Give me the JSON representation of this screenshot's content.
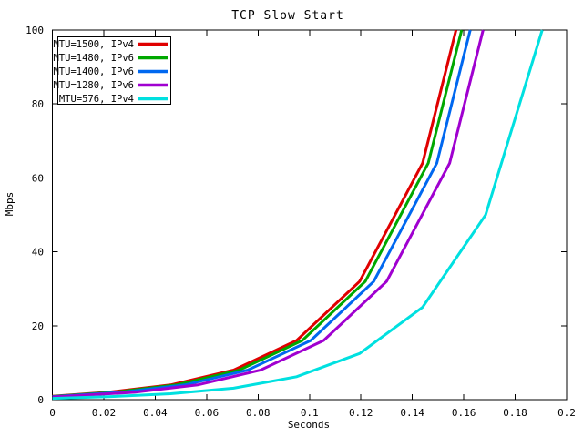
{
  "chart_data": {
    "type": "line",
    "title": "TCP Slow Start",
    "xlabel": "Seconds",
    "ylabel": "Mbps",
    "xlim": [
      0,
      0.2
    ],
    "ylim": [
      0,
      100
    ],
    "xticks": [
      0,
      0.02,
      0.04,
      0.06,
      0.08,
      0.1,
      0.12,
      0.14,
      0.16,
      0.18,
      0.2
    ],
    "xtick_labels": [
      "0",
      "0.02",
      "0.04",
      "0.06",
      "0.08",
      "0.1",
      "0.12",
      "0.14",
      "0.16",
      "0.18",
      "0.2"
    ],
    "yticks": [
      0,
      20,
      40,
      60,
      80,
      100
    ],
    "ytick_labels": [
      "0",
      "20",
      "40",
      "60",
      "80",
      "100"
    ],
    "grid": false,
    "legend_position": "top-left",
    "legend_border": true,
    "background_color": "#ffffff",
    "axis_color": "#000000",
    "series": [
      {
        "name": "MTU=1500, IPv4",
        "color": "#e00000",
        "points": [
          [
            0,
            0.9
          ],
          [
            0.0215,
            2
          ],
          [
            0.046,
            4
          ],
          [
            0.0705,
            8
          ],
          [
            0.095,
            16
          ],
          [
            0.1195,
            32
          ],
          [
            0.144,
            64
          ],
          [
            0.157,
            100
          ]
        ]
      },
      {
        "name": "MTU=1480, IPv6",
        "color": "#00a800",
        "points": [
          [
            0,
            0.85
          ],
          [
            0.0237,
            2
          ],
          [
            0.0482,
            4
          ],
          [
            0.0727,
            8
          ],
          [
            0.0972,
            16
          ],
          [
            0.1217,
            32
          ],
          [
            0.1462,
            64
          ],
          [
            0.1592,
            100
          ]
        ]
      },
      {
        "name": "MTU=1400, IPv6",
        "color": "#0068f0",
        "points": [
          [
            0,
            0.8
          ],
          [
            0.027,
            2
          ],
          [
            0.0515,
            4
          ],
          [
            0.076,
            8
          ],
          [
            0.1005,
            16
          ],
          [
            0.125,
            32
          ],
          [
            0.1495,
            64
          ],
          [
            0.1625,
            100
          ]
        ]
      },
      {
        "name": "MTU=1280, IPv6",
        "color": "#a000d0",
        "points": [
          [
            0,
            0.72
          ],
          [
            0.032,
            2
          ],
          [
            0.0565,
            4
          ],
          [
            0.081,
            8
          ],
          [
            0.1055,
            16
          ],
          [
            0.13,
            32
          ],
          [
            0.1545,
            64
          ],
          [
            0.1675,
            100
          ]
        ]
      },
      {
        "name": "MTU=576, IPv4",
        "color": "#00e0e0",
        "points": [
          [
            0,
            0.35
          ],
          [
            0.0215,
            0.8
          ],
          [
            0.046,
            1.6
          ],
          [
            0.0705,
            3.1
          ],
          [
            0.095,
            6.2
          ],
          [
            0.1195,
            12.5
          ],
          [
            0.144,
            25
          ],
          [
            0.1685,
            50
          ],
          [
            0.1905,
            100
          ]
        ]
      }
    ]
  }
}
